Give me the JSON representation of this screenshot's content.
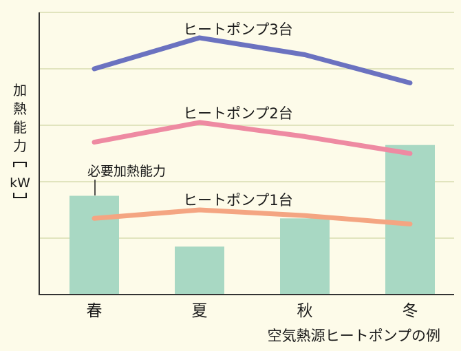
{
  "chart_data": {
    "type": "bar",
    "categories": [
      "春",
      "夏",
      "秋",
      "冬"
    ],
    "ylabel_chars": [
      "加",
      "熱",
      "能",
      "力"
    ],
    "yunit": "kW",
    "ylim": [
      0,
      100
    ],
    "grid": true,
    "bars": {
      "label": "必要加熱能力",
      "values": [
        35,
        17,
        27,
        53
      ],
      "color": "#a8d8c3"
    },
    "series": [
      {
        "name": "ヒートポンプ3台",
        "values": [
          80,
          91,
          85,
          75
        ],
        "color": "#6b72c0"
      },
      {
        "name": "ヒートポンプ2台",
        "values": [
          54,
          61,
          56,
          50
        ],
        "color": "#ee8aa2"
      },
      {
        "name": "ヒートポンプ1台",
        "values": [
          27,
          30,
          28,
          25
        ],
        "color": "#f4a582"
      }
    ],
    "caption": "空気熱源ヒートポンプの例"
  },
  "colors": {
    "background": "#fdfbe9",
    "grid": "#d8ddb0",
    "axis": "#333333"
  }
}
